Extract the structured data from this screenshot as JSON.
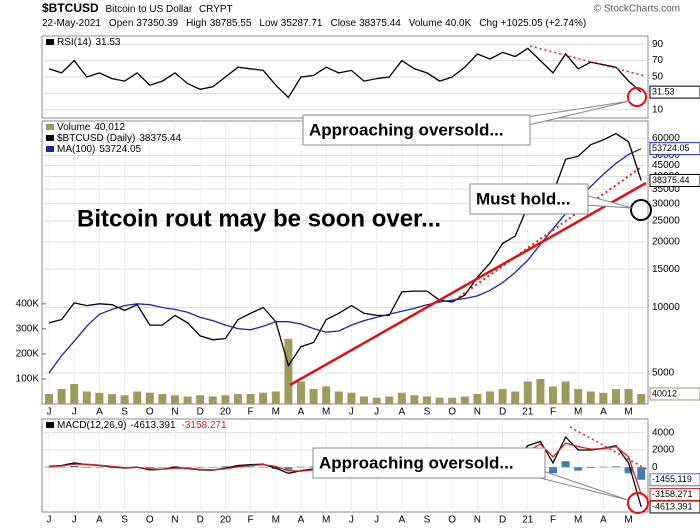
{
  "header": {
    "symbol": "$BTCUSD",
    "name": "Bitcoin to US Dollar",
    "exchange": "CRYPT",
    "date": "22-May-2021",
    "quote": [
      {
        "label": "Open",
        "value": 37350.39
      },
      {
        "label": "High",
        "value": 38785.55
      },
      {
        "label": "Low",
        "value": 35287.71
      },
      {
        "label": "Close",
        "value": 38375.44
      },
      {
        "label": "Volume",
        "value": "40.0K"
      },
      {
        "label": "Chg",
        "value": "+1025.05 (+2.74%)"
      }
    ],
    "copyright": "© StockCharts.com"
  },
  "chart_data": [
    {
      "type": "line",
      "ylim": [
        0,
        100
      ],
      "yticks": [
        10,
        30,
        50,
        70,
        90
      ],
      "grid": true,
      "annotations": [
        "Approaching oversold..."
      ],
      "series": [
        {
          "name": "RSI(14)",
          "color": "#000000",
          "values": [
            60,
            55,
            70,
            50,
            55,
            48,
            45,
            55,
            40,
            45,
            55,
            42,
            35,
            38,
            50,
            62,
            60,
            58,
            40,
            25,
            50,
            52,
            62,
            55,
            58,
            45,
            48,
            50,
            70,
            60,
            55,
            45,
            50,
            62,
            78,
            72,
            80,
            75,
            85,
            70,
            55,
            78,
            60,
            68,
            65,
            62,
            45,
            31.53
          ]
        }
      ]
    },
    {
      "type": "line",
      "log_scale": true,
      "grid": true,
      "categories": [
        "J",
        null,
        "J",
        null,
        "A",
        null,
        "S",
        null,
        "O",
        null,
        "N",
        null,
        "D",
        null,
        "20",
        null,
        "F",
        null,
        "M",
        null,
        "A",
        null,
        "M",
        null,
        "J",
        null,
        "J",
        null,
        "A",
        null,
        "S",
        null,
        "O",
        null,
        "N",
        null,
        "D",
        null,
        "21",
        null,
        "F",
        null,
        "M",
        null,
        "A",
        null,
        "M",
        null
      ],
      "ylim": [
        3600,
        72000
      ],
      "yticks": [
        5000,
        10000,
        15000,
        20000,
        25000,
        30000,
        35000,
        40000,
        45000,
        50000,
        60000
      ],
      "y2lim": [
        0,
        1130000
      ],
      "y2ticks": [
        {
          "value": 100000,
          "label": "100K"
        },
        {
          "value": 200000,
          "label": "200K"
        },
        {
          "value": 300000,
          "label": "300K"
        },
        {
          "value": 400000,
          "label": "400K"
        }
      ],
      "annotations": [
        "Must hold...",
        "Bitcoin rout may be soon over..."
      ],
      "series": [
        {
          "name": "Volume",
          "type": "bar",
          "axis": "y2",
          "color": "#9c9c5c",
          "values": [
            40000,
            60000,
            80000,
            50000,
            45000,
            40000,
            35000,
            50000,
            45000,
            40000,
            35000,
            30000,
            35000,
            30000,
            35000,
            40000,
            40000,
            45000,
            50000,
            260000,
            90000,
            60000,
            70000,
            50000,
            45000,
            30000,
            25000,
            30000,
            45000,
            35000,
            30000,
            25000,
            25000,
            30000,
            40000,
            50000,
            60000,
            50000,
            90000,
            100000,
            70000,
            90000,
            60000,
            50000,
            45000,
            60000,
            60000,
            40012
          ],
          "value_labels": [
            null,
            null,
            null,
            null,
            null,
            null,
            null,
            null,
            null,
            null,
            null,
            null,
            null,
            null,
            null,
            null,
            null,
            null,
            null,
            null,
            null,
            null,
            null,
            null,
            null,
            null,
            null,
            null,
            null,
            null,
            null,
            null,
            null,
            null,
            null,
            null,
            null,
            null,
            null,
            null,
            null,
            null,
            null,
            null,
            null,
            null,
            null,
            "40,012"
          ]
        },
        {
          "name": "$BTCUSD (Daily)",
          "color": "#000000",
          "values": [
            8500,
            8800,
            10500,
            10200,
            10400,
            10300,
            9700,
            10300,
            8300,
            8300,
            9200,
            8500,
            7400,
            7100,
            7200,
            8800,
            9400,
            10000,
            8600,
            5400,
            6600,
            6900,
            8800,
            9400,
            10200,
            9400,
            9200,
            9200,
            11800,
            11900,
            11900,
            10800,
            10600,
            11400,
            13800,
            16000,
            19700,
            21300,
            29300,
            36800,
            33500,
            48000,
            49600,
            56000,
            59000,
            63000,
            57800,
            38375.44
          ]
        },
        {
          "name": "MA(100)",
          "color": "#1c2a9c",
          "values": [
            5000,
            6000,
            7000,
            8200,
            9300,
            9800,
            10200,
            10400,
            10300,
            10000,
            9800,
            9500,
            9000,
            8700,
            8300,
            8000,
            7900,
            8200,
            8600,
            8600,
            8400,
            8000,
            7700,
            7800,
            8300,
            8700,
            9000,
            9300,
            9600,
            9900,
            10300,
            10600,
            10800,
            11000,
            11300,
            12000,
            13000,
            14500,
            16500,
            19500,
            23000,
            27000,
            31500,
            36000,
            41000,
            46000,
            50500,
            53724.05
          ]
        }
      ]
    },
    {
      "type": "line",
      "grid": true,
      "categories": [
        "J",
        null,
        "J",
        null,
        "A",
        null,
        "S",
        null,
        "O",
        null,
        "N",
        null,
        "D",
        null,
        "20",
        null,
        "F",
        null,
        "M",
        null,
        "A",
        null,
        "M",
        null,
        "J",
        null,
        "J",
        null,
        "A",
        null,
        "S",
        null,
        "O",
        null,
        "N",
        null,
        "D",
        null,
        "21",
        null,
        "F",
        null,
        "M",
        null,
        "A",
        null,
        "M",
        null
      ],
      "ylim": [
        -5200,
        5600
      ],
      "yticks": [
        0,
        2000,
        4000
      ],
      "annotations": [
        "Approaching oversold..."
      ],
      "series": [
        {
          "type": "bar",
          "color": "#3f7fae",
          "values": [
            50,
            50,
            150,
            -50,
            -50,
            -50,
            -50,
            20,
            -100,
            0,
            100,
            -50,
            -50,
            -50,
            100,
            150,
            100,
            50,
            -200,
            -300,
            50,
            100,
            200,
            50,
            0,
            -50,
            -30,
            0,
            150,
            50,
            -50,
            -100,
            -50,
            100,
            300,
            200,
            100,
            -50,
            600,
            300,
            -700,
            700,
            -400,
            -100,
            50,
            100,
            -700,
            -1455.119
          ]
        },
        {
          "name": "MACD(12,26,9)",
          "color": "#000000",
          "values": [
            100,
            200,
            500,
            300,
            200,
            50,
            -100,
            0,
            -300,
            -250,
            0,
            -150,
            -300,
            -350,
            -100,
            200,
            300,
            350,
            -100,
            -700,
            -400,
            -200,
            300,
            350,
            300,
            100,
            50,
            50,
            500,
            500,
            300,
            -50,
            -100,
            150,
            700,
            900,
            1000,
            800,
            2500,
            3000,
            500,
            3500,
            2000,
            2000,
            2200,
            2500,
            500,
            -4613.391
          ]
        },
        {
          "color": "#d42020",
          "values": [
            50,
            150,
            350,
            350,
            250,
            100,
            -50,
            -20,
            -200,
            -250,
            -100,
            -100,
            -250,
            -300,
            -200,
            50,
            200,
            300,
            100,
            -400,
            -450,
            -300,
            100,
            300,
            300,
            150,
            80,
            50,
            350,
            450,
            350,
            50,
            -50,
            50,
            400,
            700,
            900,
            850,
            1900,
            2700,
            1200,
            2800,
            2400,
            2100,
            2150,
            2400,
            1200,
            -3158.271
          ]
        }
      ]
    }
  ]
}
